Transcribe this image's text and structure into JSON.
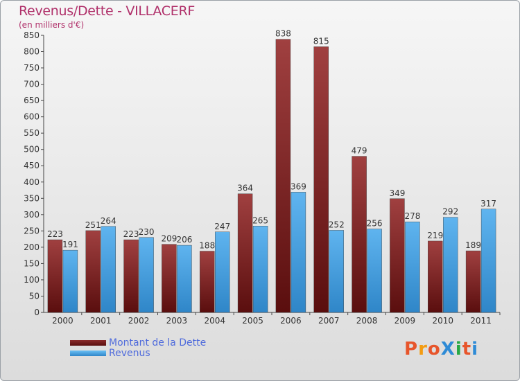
{
  "title": "Revenus/Dette - VILLACERF",
  "subtitle": "(en milliers d'€)",
  "colors": {
    "dette": "#7a1c1c",
    "revenus": "#4aa3e0",
    "title": "#b0306a",
    "legend_text": "#4f6bdc"
  },
  "legend": {
    "dette": "Montant de la Dette",
    "revenus": "Revenus"
  },
  "logo": "ProXiti",
  "chart_data": {
    "type": "bar",
    "title": "Revenus/Dette - VILLACERF",
    "subtitle": "(en milliers d'€)",
    "categories": [
      "2000",
      "2001",
      "2002",
      "2003",
      "2004",
      "2005",
      "2006",
      "2007",
      "2008",
      "2009",
      "2010",
      "2011"
    ],
    "series": [
      {
        "name": "Montant de la Dette",
        "values": [
          223,
          251,
          223,
          209,
          188,
          364,
          838,
          815,
          479,
          349,
          219,
          189
        ]
      },
      {
        "name": "Revenus",
        "values": [
          191,
          264,
          230,
          206,
          247,
          265,
          369,
          252,
          256,
          278,
          292,
          317
        ]
      }
    ],
    "ylim": [
      0,
      850
    ],
    "yticks": [
      0,
      50,
      100,
      150,
      200,
      250,
      300,
      350,
      400,
      450,
      500,
      550,
      600,
      650,
      700,
      750,
      800,
      850
    ],
    "grid": false,
    "legend_position": "bottom-left"
  }
}
